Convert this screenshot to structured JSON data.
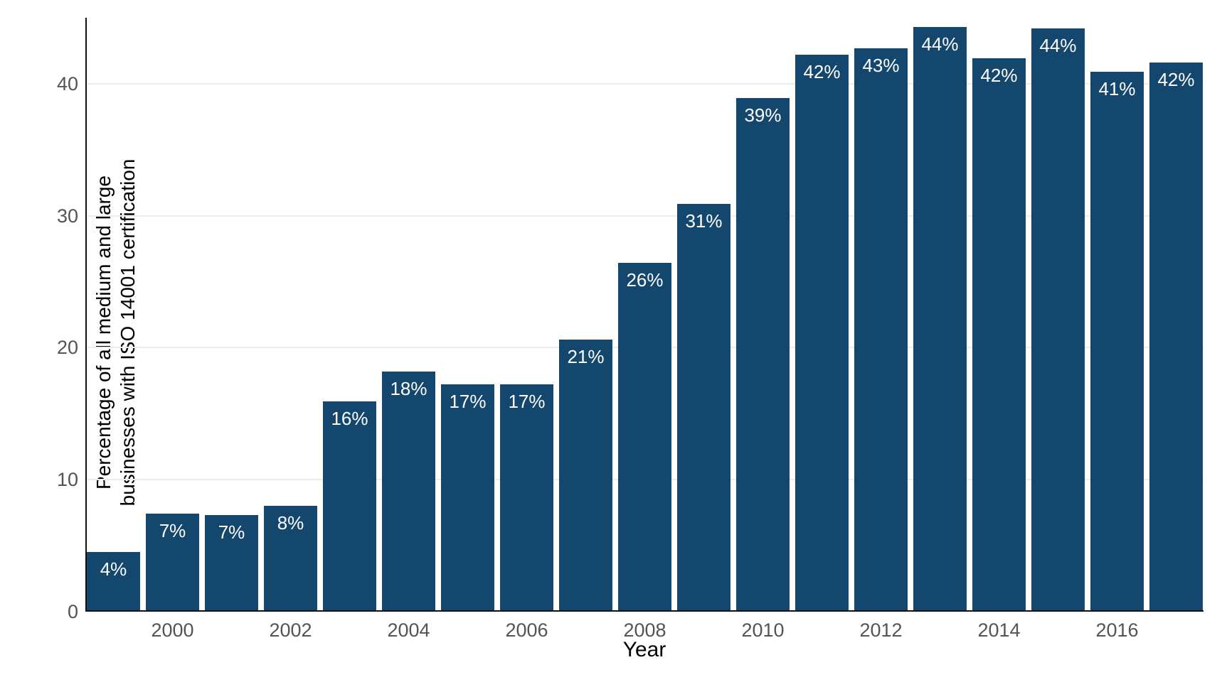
{
  "chart_data": {
    "type": "bar",
    "title": "",
    "xlabel": "Year",
    "ylabel": "Percentage of all medium and large businesses with ISO 14001 certification",
    "ylabel_lines": [
      "Percentage of all medium and large",
      "businesses with ISO 14001 certification"
    ],
    "categories": [
      1999,
      2000,
      2001,
      2002,
      2003,
      2004,
      2005,
      2006,
      2007,
      2008,
      2009,
      2010,
      2011,
      2012,
      2013,
      2014,
      2015,
      2016,
      2017
    ],
    "values": [
      4.4,
      7.3,
      7.2,
      7.9,
      15.8,
      18.1,
      17.1,
      17.1,
      20.5,
      26.3,
      30.8,
      38.8,
      42.1,
      42.6,
      44.2,
      41.8,
      44.1,
      40.8,
      41.5
    ],
    "bar_labels": [
      "4%",
      "7%",
      "7%",
      "8%",
      "16%",
      "18%",
      "17%",
      "17%",
      "21%",
      "26%",
      "31%",
      "39%",
      "42%",
      "43%",
      "44%",
      "42%",
      "44%",
      "41%",
      "42%"
    ],
    "x_tick_labels": [
      "2000",
      "2002",
      "2004",
      "2006",
      "2008",
      "2010",
      "2012",
      "2014",
      "2016"
    ],
    "y_tick_labels": [
      "0",
      "10",
      "20",
      "30",
      "40"
    ],
    "y_ticks": [
      0,
      10,
      20,
      30,
      40
    ],
    "ylim": [
      0,
      45
    ],
    "grid": "horizontal",
    "legend": "none",
    "colors": {
      "bar": "#14476e",
      "bar_label": "#ffffff",
      "tick_label": "#545454",
      "axis_title": "#000000",
      "spine": "#111111",
      "gridline": "#ededed",
      "background": "#ffffff"
    }
  }
}
